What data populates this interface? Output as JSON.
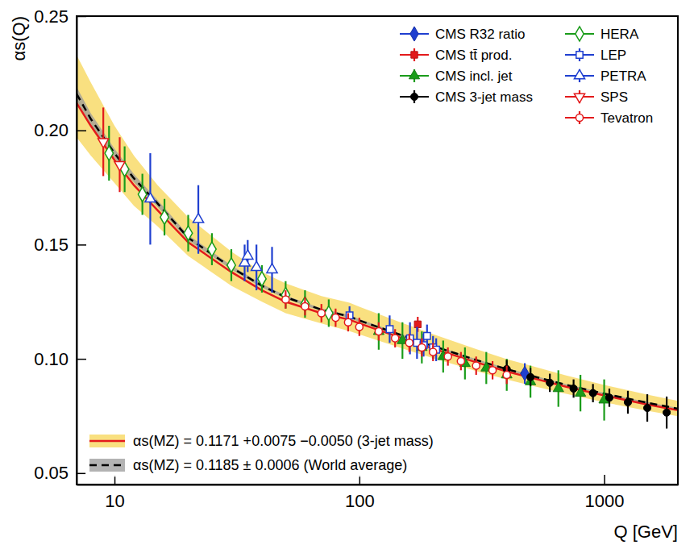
{
  "chart_data": {
    "type": "scatter",
    "x_label": "Q [GeV]",
    "y_label": "αs(Q)",
    "log": "x",
    "grid": false,
    "legend": "upper right",
    "xlim": [
      7,
      2000
    ],
    "xticks": [
      10,
      100,
      1000
    ],
    "ylim": [
      0.045,
      0.25
    ],
    "yticks": [
      0.05,
      {
        "value": 0.1,
        "label": "0.10"
      },
      0.15,
      {
        "value": 0.2,
        "label": "0.20"
      },
      0.25
    ],
    "series": [
      {
        "name": "CMS R32 ratio",
        "color": "#1f3fd0",
        "marker": "diamond",
        "x": [
          474
        ],
        "values": [
          0.0936
        ],
        "errors": [
          0.0045
        ]
      },
      {
        "name": "CMS tt̄ prod.",
        "color": "#e31a1c",
        "marker": "square",
        "x": [
          173.2
        ],
        "values": [
          0.1151
        ],
        "errors": [
          0.0033
        ]
      },
      {
        "name": "CMS incl. jet",
        "color": "#1a9c1a",
        "marker": "triangle",
        "x": [
          120,
          150,
          180,
          220,
          270,
          330,
          400,
          500,
          650,
          800,
          1000
        ],
        "values": [
          0.112,
          0.108,
          0.105,
          0.101,
          0.098,
          0.096,
          0.093,
          0.09,
          0.087,
          0.085,
          0.082
        ],
        "errors": [
          0.008,
          0.008,
          0.007,
          0.007,
          0.007,
          0.007,
          0.007,
          0.007,
          0.008,
          0.008,
          0.009
        ]
      },
      {
        "name": "CMS 3-jet mass",
        "color": "#000000",
        "marker": "circle",
        "x": [
          400,
          500,
          600,
          750,
          900,
          1050,
          1250,
          1500,
          1800
        ],
        "values": [
          0.0955,
          0.092,
          0.0895,
          0.087,
          0.085,
          0.083,
          0.081,
          0.0785,
          0.0765
        ],
        "errors": [
          0.004,
          0.004,
          0.004,
          0.004,
          0.004,
          0.004,
          0.005,
          0.006,
          0.007
        ]
      },
      {
        "name": "HERA",
        "color": "#1a9c1a",
        "marker": "open-diamond",
        "x": [
          9.5,
          11,
          13,
          16,
          20,
          25,
          30,
          40,
          50,
          60,
          75
        ],
        "values": [
          0.19,
          0.183,
          0.172,
          0.162,
          0.155,
          0.148,
          0.141,
          0.135,
          0.128,
          0.124,
          0.12
        ],
        "errors": [
          0.012,
          0.01,
          0.009,
          0.008,
          0.008,
          0.007,
          0.007,
          0.006,
          0.006,
          0.006,
          0.006
        ]
      },
      {
        "name": "LEP",
        "color": "#1f3fd0",
        "marker": "open-square",
        "x": [
          91.2,
          133,
          161,
          172,
          183,
          189,
          200,
          206
        ],
        "values": [
          0.119,
          0.113,
          0.109,
          0.107,
          0.106,
          0.11,
          0.105,
          0.104
        ],
        "errors": [
          0.004,
          0.006,
          0.007,
          0.007,
          0.005,
          0.005,
          0.005,
          0.005
        ]
      },
      {
        "name": "PETRA",
        "color": "#1f3fd0",
        "marker": "open-triangle",
        "x": [
          14,
          22,
          34,
          35,
          38,
          44
        ],
        "values": [
          0.17,
          0.161,
          0.142,
          0.145,
          0.14,
          0.139
        ],
        "errors": [
          0.02,
          0.015,
          0.008,
          0.007,
          0.01,
          0.01
        ]
      },
      {
        "name": "SPS",
        "color": "#e31a1c",
        "marker": "open-triangle-down",
        "x": [
          9,
          10.5
        ],
        "values": [
          0.195,
          0.185
        ],
        "errors": [
          0.015,
          0.012
        ]
      },
      {
        "name": "Tevatron",
        "color": "#e31a1c",
        "marker": "open-circle",
        "x": [
          50,
          60,
          70,
          80,
          90,
          100,
          120,
          140,
          160,
          180,
          200,
          230,
          260,
          300,
          350,
          400
        ],
        "values": [
          0.126,
          0.123,
          0.12,
          0.118,
          0.116,
          0.114,
          0.112,
          0.109,
          0.107,
          0.105,
          0.103,
          0.101,
          0.099,
          0.097,
          0.095,
          0.093
        ],
        "errors": [
          0.004,
          0.004,
          0.004,
          0.004,
          0.004,
          0.004,
          0.004,
          0.004,
          0.004,
          0.004,
          0.004,
          0.004,
          0.004,
          0.004,
          0.004,
          0.004
        ]
      },
      {
        "name": "αs(MZ) = 0.1171 +0.0075 −0.0050 (3-jet mass)",
        "type": "line",
        "color": "#e31a1c",
        "line_style": "solid",
        "x": [
          7,
          8,
          10,
          12,
          15,
          20,
          30,
          40,
          50,
          70,
          91.19,
          100,
          150,
          200,
          300,
          400,
          500,
          700,
          1000,
          1500,
          2000
        ],
        "values": [
          0.212,
          0.202,
          0.187,
          0.176,
          0.165,
          0.151,
          0.138,
          0.13,
          0.125,
          0.12,
          0.1171,
          0.1155,
          0.109,
          0.1045,
          0.0985,
          0.0945,
          0.0918,
          0.0878,
          0.084,
          0.08,
          0.0775
        ],
        "lower": [
          0.197,
          0.189,
          0.177,
          0.167,
          0.158,
          0.145,
          0.132,
          0.125,
          0.12,
          0.1155,
          0.1121,
          0.1107,
          0.1045,
          0.1003,
          0.0947,
          0.091,
          0.0884,
          0.0847,
          0.081,
          0.0773,
          0.0749
        ],
        "upper": [
          0.233,
          0.221,
          0.202,
          0.189,
          0.176,
          0.162,
          0.147,
          0.138,
          0.133,
          0.1275,
          0.1246,
          0.1228,
          0.1157,
          0.1108,
          0.1043,
          0.0999,
          0.097,
          0.0927,
          0.0886,
          0.0843,
          0.0816
        ]
      },
      {
        "name": "αs(MZ) = 0.1185 ± 0.0006 (World average)",
        "type": "line",
        "color": "#000000",
        "line_style": "dashed",
        "x": [
          7,
          8,
          10,
          12,
          15,
          20,
          30,
          40,
          50,
          70,
          91.19,
          100,
          150,
          200,
          300,
          400,
          500,
          700,
          1000,
          1500,
          2000
        ],
        "values": [
          0.216,
          0.205,
          0.19,
          0.179,
          0.168,
          0.153,
          0.14,
          0.132,
          0.127,
          0.1215,
          0.1185,
          0.1168,
          0.1102,
          0.1056,
          0.0995,
          0.0955,
          0.0927,
          0.0886,
          0.0848,
          0.0808,
          0.0782
        ],
        "lower": [
          0.213,
          0.2025,
          0.188,
          0.1772,
          0.1665,
          0.1518,
          0.1391,
          0.1312,
          0.1263,
          0.1209,
          0.1179,
          0.1162,
          0.1097,
          0.1051,
          0.0991,
          0.0951,
          0.0923,
          0.0883,
          0.0845,
          0.0805,
          0.0779
        ],
        "upper": [
          0.219,
          0.2075,
          0.192,
          0.1808,
          0.1695,
          0.1542,
          0.1409,
          0.1328,
          0.1277,
          0.1221,
          0.1191,
          0.1174,
          0.1107,
          0.1061,
          0.0999,
          0.0959,
          0.0931,
          0.0889,
          0.0851,
          0.0811,
          0.0785
        ]
      }
    ]
  }
}
